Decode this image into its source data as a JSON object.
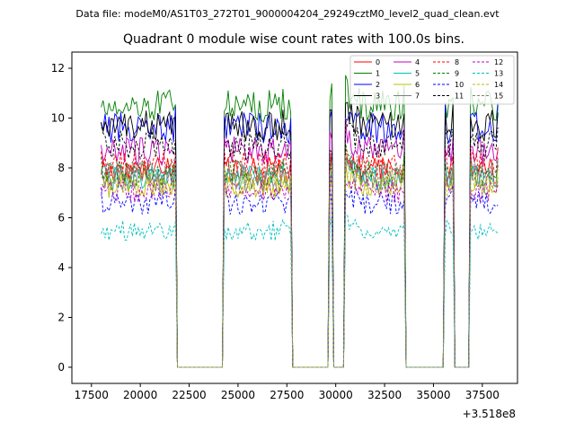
{
  "header": {
    "data_file": "Data file: modeM0/AS1T03_272T01_9000004204_29249cztM0_level2_quad_clean.evt"
  },
  "chart_data": {
    "type": "line",
    "title": "Quadrant 0 module wise count rates with 100.0s bins.",
    "xlabel": "",
    "ylabel": "",
    "x_offset_label": "+3.518e8",
    "xlim": [
      16500,
      39300
    ],
    "ylim": [
      -0.65,
      12.65
    ],
    "x_ticks": [
      17500,
      20000,
      22500,
      25000,
      27500,
      30000,
      32500,
      35000,
      37500
    ],
    "x_tick_labels": [
      "17500",
      "20000",
      "22500",
      "25000",
      "27500",
      "30000",
      "32500",
      "35000",
      "37500"
    ],
    "y_ticks": [
      0,
      2,
      4,
      6,
      8,
      10,
      12
    ],
    "y_tick_labels": [
      "0",
      "2",
      "4",
      "6",
      "8",
      "10",
      "12"
    ],
    "grid": false,
    "legend_position": "top-right",
    "x_start": 18000,
    "x_step": 100,
    "segments": [
      {
        "from": 18000,
        "to": 21800,
        "on": true
      },
      {
        "from": 21900,
        "to": 22000,
        "on": false
      },
      {
        "from": 22100,
        "to": 24200,
        "on": false
      },
      {
        "from": 24300,
        "to": 27700,
        "on": true
      },
      {
        "from": 27800,
        "to": 29600,
        "on": false
      },
      {
        "from": 29700,
        "to": 29800,
        "on": true
      },
      {
        "from": 29900,
        "to": 30400,
        "on": false
      },
      {
        "from": 30500,
        "to": 33500,
        "on": true
      },
      {
        "from": 33600,
        "to": 35500,
        "on": false
      },
      {
        "from": 35600,
        "to": 36000,
        "on": true
      },
      {
        "from": 36100,
        "to": 36800,
        "on": false
      },
      {
        "from": 36900,
        "to": 38300,
        "on": true
      }
    ],
    "series": [
      {
        "name": "0",
        "color": "#ff0000",
        "dash": "solid",
        "level": 7.9
      },
      {
        "name": "1",
        "color": "#008000",
        "dash": "solid",
        "level": 10.5
      },
      {
        "name": "2",
        "color": "#0000ff",
        "dash": "solid",
        "level": 9.6
      },
      {
        "name": "3",
        "color": "#000000",
        "dash": "solid",
        "level": 9.7
      },
      {
        "name": "4",
        "color": "#c000c0",
        "dash": "solid",
        "level": 8.7
      },
      {
        "name": "5",
        "color": "#00bfbf",
        "dash": "solid",
        "level": 7.6
      },
      {
        "name": "6",
        "color": "#bfbf00",
        "dash": "solid",
        "level": 7.3
      },
      {
        "name": "7",
        "color": "#808080",
        "dash": "solid",
        "level": 7.5
      },
      {
        "name": "8",
        "color": "#ff0000",
        "dash": "dashed",
        "level": 8.1
      },
      {
        "name": "9",
        "color": "#008000",
        "dash": "dashed",
        "level": 7.8
      },
      {
        "name": "10",
        "color": "#0000ff",
        "dash": "dashed",
        "level": 6.6
      },
      {
        "name": "11",
        "color": "#000000",
        "dash": "dashed",
        "level": 8.9
      },
      {
        "name": "12",
        "color": "#c000c0",
        "dash": "dashed",
        "level": 7.1
      },
      {
        "name": "13",
        "color": "#00bfbf",
        "dash": "dashed",
        "level": 5.5
      },
      {
        "name": "14",
        "color": "#bfbf00",
        "dash": "dashed",
        "level": 7.4
      },
      {
        "name": "15",
        "color": "#808080",
        "dash": "dashed",
        "level": 7.8
      }
    ]
  }
}
